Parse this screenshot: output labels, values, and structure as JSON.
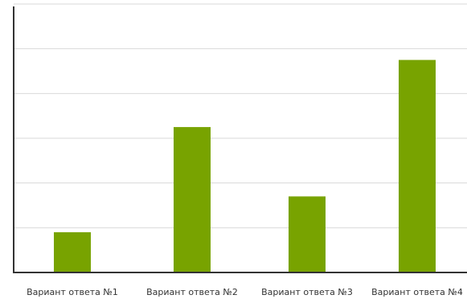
{
  "chart_data": {
    "type": "bar",
    "categories": [
      "Вариант ответа №1",
      "Вариант ответа №2",
      "Вариант ответа №3",
      "Вариант ответа №4"
    ],
    "values": [
      0.9,
      3.25,
      1.7,
      4.75
    ],
    "ylim": [
      0,
      6
    ],
    "grid": true,
    "bar_color": "#78a300",
    "grid_color": "#d9d9d9",
    "axis_color": "#333333"
  }
}
